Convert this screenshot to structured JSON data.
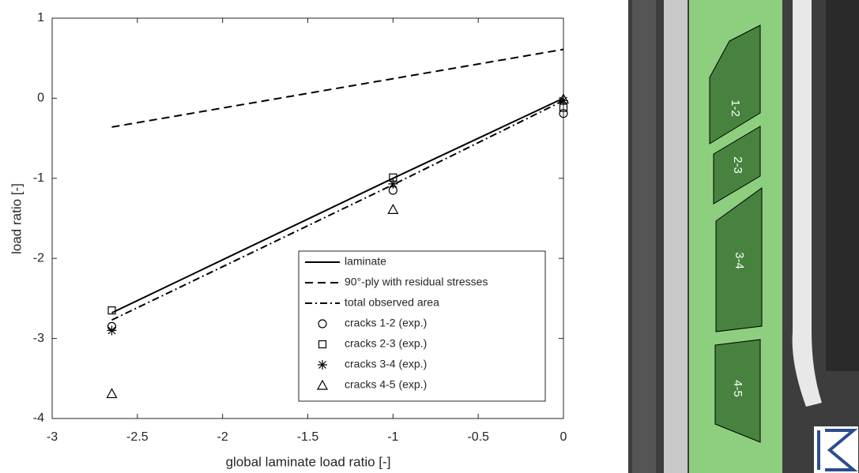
{
  "chart_data": {
    "type": "line",
    "xlabel": "global laminate load ratio [-]",
    "ylabel": "load ratio [-]",
    "xlim": [
      -3,
      0
    ],
    "ylim": [
      -4,
      1
    ],
    "xticks": [
      -3,
      -2.5,
      -2,
      -1.5,
      -1,
      -0.5,
      0
    ],
    "yticks": [
      -4,
      -3,
      -2,
      -1,
      0,
      1
    ],
    "legend": "lower right",
    "series": [
      {
        "name": "laminate",
        "color": "#000000",
        "linestyle": "solid",
        "marker": "none",
        "x": [
          -2.65,
          -1,
          0
        ],
        "values": [
          -2.68,
          -1.0,
          0.0
        ]
      },
      {
        "name": "90°-ply with residual stresses",
        "color": "#000000",
        "linestyle": "dashed",
        "marker": "none",
        "x": [
          -2.65,
          0
        ],
        "values": [
          -0.36,
          0.61
        ]
      },
      {
        "name": "total observed area",
        "color": "#000000",
        "linestyle": "dashdot",
        "marker": "none",
        "x": [
          -2.65,
          -1,
          0
        ],
        "values": [
          -2.77,
          -1.08,
          -0.03
        ]
      },
      {
        "name": "cracks 1-2 (exp.)",
        "color": "#000000",
        "linestyle": "none",
        "marker": "circle",
        "x": [
          -2.65,
          -1,
          0
        ],
        "values": [
          -2.85,
          -1.15,
          -0.19
        ]
      },
      {
        "name": "cracks 2-3 (exp.)",
        "color": "#000000",
        "linestyle": "none",
        "marker": "square",
        "x": [
          -2.65,
          -1,
          0
        ],
        "values": [
          -2.65,
          -0.99,
          -0.12
        ]
      },
      {
        "name": "cracks 3-4 (exp.)",
        "color": "#000000",
        "linestyle": "none",
        "marker": "star",
        "x": [
          -2.65,
          -1,
          0
        ],
        "values": [
          -2.9,
          -1.07,
          -0.03
        ]
      },
      {
        "name": "cracks 4-5 (exp.)",
        "color": "#000000",
        "linestyle": "none",
        "marker": "triangle",
        "x": [
          -2.65,
          -1,
          0
        ],
        "values": [
          -3.69,
          -1.39,
          -0.01
        ]
      }
    ]
  },
  "photo": {
    "regions": [
      "1-2",
      "2-3",
      "3-4",
      "4-5"
    ]
  }
}
